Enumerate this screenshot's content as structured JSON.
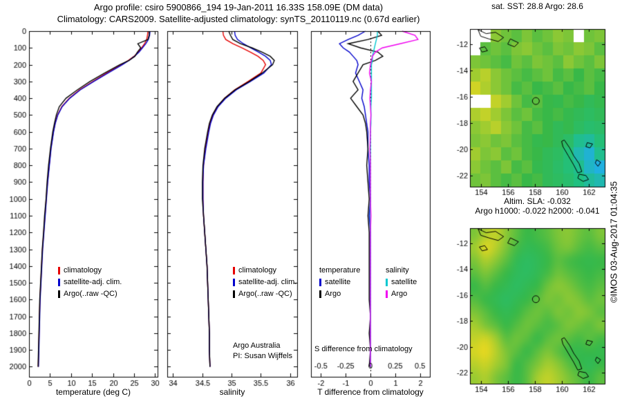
{
  "header": {
    "title_line1": "Argo profile: csiro 5900866_194 19-Jan-2011 16.33S 158.09E (DM data)",
    "title_line2": "Climatology: CARS2009. Satellite-adjusted climatology: synTS_20110119.nc (0.67d earlier)"
  },
  "watermark": "©IMOS 03-Aug-2017 01:04:35",
  "credit": {
    "line1": "Argo Australia",
    "line2": "PI: Susan Wijffels"
  },
  "colors": {
    "climatology": "#e60000",
    "satellite_clim": "#0000cc",
    "argo": "#000000",
    "sal_satellite": "#00c8d0",
    "sal_argo": "#f000f0",
    "axis": "#000000"
  },
  "chart_data": [
    {
      "type": "line",
      "name": "temperature-profile",
      "xlabel": "temperature (deg C)",
      "ylabel": "depth",
      "xlim": [
        0,
        30.6
      ],
      "ylim": [
        0,
        2060
      ],
      "x_ticks": [
        0,
        5,
        10,
        15,
        20,
        25,
        30
      ],
      "y_ticks": [
        0,
        100,
        200,
        300,
        400,
        500,
        600,
        700,
        800,
        900,
        1000,
        1100,
        1200,
        1300,
        1400,
        1500,
        1600,
        1700,
        1800,
        1900,
        2000
      ],
      "depths": [
        0,
        25,
        50,
        75,
        100,
        125,
        150,
        175,
        200,
        250,
        300,
        350,
        400,
        450,
        500,
        550,
        600,
        700,
        800,
        900,
        1000,
        1100,
        1200,
        1300,
        1400,
        1500,
        1600,
        1700,
        1800,
        1900,
        2000
      ],
      "series": [
        {
          "name": "climatology",
          "color_key": "climatology",
          "values": [
            28.3,
            28.2,
            28.0,
            27.5,
            26.8,
            26.0,
            25.0,
            23.6,
            22.0,
            18.5,
            15.2,
            12.0,
            9.6,
            7.8,
            6.8,
            6.2,
            5.8,
            5.2,
            4.8,
            4.4,
            4.1,
            3.8,
            3.5,
            3.2,
            3.0,
            2.8,
            2.6,
            2.5,
            2.4,
            2.3,
            2.2
          ]
        },
        {
          "name": "satellite-adj. clim.",
          "color_key": "satellite_clim",
          "values": [
            28.8,
            28.7,
            28.4,
            27.8,
            27.0,
            26.2,
            25.1,
            23.8,
            22.2,
            18.8,
            15.4,
            12.2,
            9.7,
            7.9,
            6.85,
            6.25,
            5.85,
            5.25,
            4.85,
            4.45,
            4.15,
            3.85,
            3.55,
            3.25,
            3.05,
            2.85,
            2.65,
            2.55,
            2.45,
            2.35,
            2.25
          ]
        },
        {
          "name": "Argo(..raw -QC)",
          "color_key": "argo",
          "values": [
            28.6,
            28.6,
            28.3,
            25.9,
            26.6,
            25.8,
            25.2,
            23.8,
            21.6,
            18.0,
            14.5,
            11.5,
            8.8,
            7.2,
            6.5,
            6.05,
            5.65,
            5.1,
            4.65,
            4.3,
            4.05,
            3.7,
            3.45,
            3.15,
            2.95,
            2.75,
            2.55,
            2.45,
            2.35,
            2.25,
            2.15
          ]
        }
      ]
    },
    {
      "type": "line",
      "name": "salinity-profile",
      "xlabel": "salinity",
      "ylabel": "depth",
      "xlim": [
        33.9,
        36.12
      ],
      "ylim": [
        0,
        2060
      ],
      "x_ticks": [
        34,
        34.5,
        35,
        35.5,
        36
      ],
      "y_ticks": [
        0,
        100,
        200,
        300,
        400,
        500,
        600,
        700,
        800,
        900,
        1000,
        1100,
        1200,
        1300,
        1400,
        1500,
        1600,
        1700,
        1800,
        1900,
        2000
      ],
      "depths": [
        0,
        25,
        50,
        75,
        100,
        125,
        150,
        175,
        200,
        250,
        300,
        350,
        400,
        450,
        500,
        550,
        600,
        700,
        800,
        900,
        1000,
        1100,
        1200,
        1300,
        1400,
        1500,
        1600,
        1700,
        1800,
        1900,
        2000
      ],
      "series": [
        {
          "name": "climatology",
          "color_key": "climatology",
          "values": [
            34.85,
            34.86,
            34.9,
            35.02,
            35.18,
            35.32,
            35.45,
            35.54,
            35.58,
            35.5,
            35.28,
            35.05,
            34.88,
            34.76,
            34.68,
            34.63,
            34.6,
            34.55,
            34.52,
            34.51,
            34.51,
            34.52,
            34.54,
            34.56,
            34.58,
            34.59,
            34.6,
            34.61,
            34.62,
            34.62,
            34.63
          ]
        },
        {
          "name": "satellite-adj. clim.",
          "color_key": "satellite_clim",
          "values": [
            35.05,
            35.06,
            35.1,
            35.2,
            35.33,
            35.46,
            35.58,
            35.66,
            35.68,
            35.55,
            35.32,
            35.08,
            34.9,
            34.77,
            34.69,
            34.64,
            34.61,
            34.56,
            34.52,
            34.51,
            34.51,
            34.52,
            34.54,
            34.56,
            34.58,
            34.59,
            34.6,
            34.61,
            34.62,
            34.62,
            34.63
          ]
        },
        {
          "name": "Argo(..raw -QC)",
          "color_key": "argo",
          "values": [
            34.95,
            34.98,
            35.02,
            35.15,
            35.35,
            35.52,
            35.66,
            35.73,
            35.7,
            35.52,
            35.3,
            35.06,
            34.88,
            34.75,
            34.67,
            34.62,
            34.59,
            34.54,
            34.51,
            34.5,
            34.5,
            34.52,
            34.54,
            34.56,
            34.58,
            34.59,
            34.6,
            34.61,
            34.62,
            34.62,
            34.63
          ]
        }
      ]
    },
    {
      "type": "line",
      "name": "difference-from-climatology",
      "xlabel": "T difference from climatology",
      "ylabel": "depth",
      "xlim": [
        -2.4,
        2.4
      ],
      "ylim": [
        0,
        2060
      ],
      "x_ticks": [
        -2,
        -1,
        0,
        1,
        2
      ],
      "zero_line": true,
      "s_axis": {
        "label": "S difference from climatology",
        "scale": 4,
        "ticks": [
          -0.5,
          -0.25,
          0,
          0.25,
          0.5
        ]
      },
      "legend": {
        "col1": "temperature",
        "col2": "salinity",
        "rows": [
          [
            "satellite",
            "satellite"
          ],
          [
            "Argo",
            "Argo"
          ]
        ]
      },
      "depths": [
        0,
        25,
        50,
        75,
        100,
        125,
        150,
        175,
        200,
        250,
        300,
        350,
        400,
        450,
        500,
        550,
        600,
        700,
        800,
        900,
        1000,
        1100,
        1200,
        1300,
        1400,
        1500,
        1600,
        1700,
        1800,
        1900,
        2000
      ],
      "series": [
        {
          "name": "temperature satellite",
          "axis": "T",
          "color_key": "satellite_clim",
          "values": [
            -0.2,
            -0.5,
            -0.9,
            -1.25,
            -1.1,
            -0.85,
            -0.7,
            -0.55,
            -0.5,
            -0.6,
            -0.45,
            -0.3,
            -0.35,
            -0.25,
            -0.2,
            -0.15,
            -0.1,
            -0.1,
            -0.05,
            -0.05,
            0,
            -0.05,
            0,
            0,
            0,
            0,
            0,
            0,
            0,
            0,
            0
          ]
        },
        {
          "name": "temperature Argo",
          "axis": "T",
          "color_key": "argo",
          "values": [
            0.3,
            0.45,
            -0.1,
            -0.9,
            -0.4,
            0.3,
            0.5,
            0.2,
            -0.3,
            -0.5,
            -0.7,
            -0.5,
            -0.8,
            -0.55,
            -0.3,
            -0.2,
            -0.15,
            -0.1,
            -0.15,
            -0.1,
            -0.05,
            -0.1,
            -0.05,
            -0.05,
            -0.05,
            -0.05,
            -0.05,
            0,
            -0.05,
            0,
            -0.05
          ]
        },
        {
          "name": "salinity satellite",
          "axis": "S",
          "color_key": "sal_satellite",
          "values": [
            0.07,
            0.07,
            0.06,
            0.05,
            0.04,
            0.03,
            0.02,
            0.02,
            0.01,
            0.01,
            0.01,
            0.01,
            0.01,
            0.005,
            0.005,
            0.005,
            0,
            0,
            0,
            0,
            0,
            0,
            0,
            0,
            0,
            0,
            0,
            0,
            0,
            0,
            0
          ]
        },
        {
          "name": "salinity Argo",
          "axis": "S",
          "color_key": "sal_argo",
          "values": [
            0.32,
            0.45,
            0.48,
            0.3,
            0.12,
            0.05,
            0.02,
            0.01,
            0,
            -0.01,
            0.01,
            0,
            -0.005,
            0,
            0.005,
            0,
            0,
            -0.005,
            0,
            0,
            0,
            0.005,
            0,
            0,
            0,
            0,
            0,
            0,
            0,
            0,
            0
          ]
        }
      ]
    },
    {
      "type": "heatmap",
      "name": "sst-map",
      "title": "sat. SST: 28.8 Argo: 28.6",
      "style": "blocky",
      "xlim": [
        153.2,
        163.2
      ],
      "ylim": [
        -10.85,
        -22.85
      ],
      "x_ticks": [
        154,
        156,
        158,
        160,
        162
      ],
      "y_ticks": [
        -12,
        -14,
        -16,
        -18,
        -20,
        -22
      ],
      "marker": {
        "lon": 158.09,
        "lat": -16.33
      },
      "grid": [
        [
          null,
          null,
          0.62,
          0.58,
          0.55,
          0.6,
          0.55,
          0.58,
          0.62,
          0.6,
          null,
          0.58,
          0.6
        ],
        [
          null,
          0.55,
          0.58,
          0.55,
          0.6,
          0.62,
          0.58,
          0.55,
          0.6,
          0.58,
          0.62,
          0.6,
          0.55
        ],
        [
          0.6,
          0.58,
          0.55,
          0.52,
          0.58,
          0.55,
          0.6,
          0.58,
          0.55,
          0.62,
          0.58,
          0.55,
          0.6
        ],
        [
          0.65,
          0.7,
          0.62,
          0.58,
          0.55,
          0.52,
          0.55,
          0.58,
          0.52,
          0.55,
          0.5,
          0.55,
          0.52
        ],
        [
          0.75,
          0.68,
          0.62,
          0.58,
          0.52,
          0.55,
          0.5,
          0.52,
          0.55,
          0.5,
          0.52,
          0.55,
          0.5
        ],
        [
          null,
          null,
          0.72,
          0.65,
          0.58,
          0.52,
          0.55,
          0.5,
          0.48,
          0.52,
          0.5,
          0.45,
          0.48
        ],
        [
          0.68,
          0.72,
          0.65,
          0.6,
          0.55,
          0.58,
          0.52,
          0.5,
          0.52,
          0.48,
          0.45,
          0.42,
          0.45
        ],
        [
          0.62,
          0.65,
          0.7,
          0.62,
          0.58,
          0.52,
          0.55,
          0.5,
          0.45,
          0.48,
          0.42,
          0.38,
          0.4
        ],
        [
          0.6,
          0.62,
          0.58,
          0.6,
          0.55,
          0.52,
          0.48,
          0.5,
          0.45,
          0.4,
          0.3,
          0.28,
          0.35
        ],
        [
          0.65,
          0.6,
          0.62,
          0.55,
          0.58,
          0.52,
          0.5,
          0.45,
          0.42,
          0.35,
          0.25,
          0.2,
          0.3
        ],
        [
          0.62,
          0.58,
          0.55,
          0.6,
          0.52,
          0.55,
          0.48,
          0.45,
          0.4,
          0.35,
          0.3,
          0.22,
          0.18
        ],
        [
          0.58,
          0.6,
          0.55,
          0.52,
          0.55,
          0.5,
          0.52,
          0.45,
          0.42,
          0.38,
          0.32,
          0.28,
          0.25
        ]
      ]
    },
    {
      "type": "heatmap",
      "name": "sla-map",
      "title_line1": "Altim. SLA: -0.032",
      "title_line2": "Argo h1000: -0.022 h2000: -0.041",
      "style": "smooth",
      "xlim": [
        153.2,
        163.2
      ],
      "ylim": [
        -10.85,
        -22.85
      ],
      "x_ticks": [
        154,
        156,
        158,
        160,
        162
      ],
      "y_ticks": [
        -12,
        -14,
        -16,
        -18,
        -20,
        -22
      ],
      "marker": {
        "lon": 158.09,
        "lat": -16.33
      },
      "grid": [
        [
          0.6,
          0.68,
          0.72,
          0.62,
          0.55,
          0.5,
          0.52,
          0.55,
          0.6,
          0.62,
          0.58,
          0.55,
          0.6
        ],
        [
          0.65,
          0.78,
          0.7,
          0.6,
          0.52,
          0.46,
          0.48,
          0.52,
          0.58,
          0.6,
          0.55,
          0.52,
          0.55
        ],
        [
          0.6,
          0.68,
          0.62,
          0.55,
          0.46,
          0.42,
          0.45,
          0.5,
          0.55,
          0.52,
          0.5,
          0.48,
          0.5
        ],
        [
          0.55,
          0.6,
          0.55,
          0.5,
          0.44,
          0.42,
          0.46,
          0.52,
          0.58,
          0.55,
          0.52,
          0.5,
          0.52
        ],
        [
          0.5,
          0.54,
          0.5,
          0.46,
          0.42,
          0.46,
          0.5,
          0.58,
          0.62,
          0.6,
          0.55,
          0.52,
          0.55
        ],
        [
          0.54,
          0.5,
          0.46,
          0.42,
          0.46,
          0.5,
          0.55,
          0.6,
          0.58,
          0.62,
          0.6,
          0.55,
          0.58
        ],
        [
          0.6,
          0.55,
          0.5,
          0.46,
          0.5,
          0.55,
          0.58,
          0.55,
          0.6,
          0.58,
          0.62,
          0.6,
          0.55
        ],
        [
          0.66,
          0.6,
          0.55,
          0.5,
          0.54,
          0.58,
          0.55,
          0.52,
          0.55,
          0.6,
          0.58,
          0.55,
          0.6
        ],
        [
          0.72,
          0.75,
          0.65,
          0.55,
          0.58,
          0.55,
          0.5,
          0.55,
          0.58,
          0.55,
          0.52,
          0.55,
          0.52
        ],
        [
          0.76,
          0.8,
          0.7,
          0.6,
          0.55,
          0.5,
          0.55,
          0.6,
          0.55,
          0.5,
          0.48,
          0.5,
          0.48
        ],
        [
          0.7,
          0.74,
          0.66,
          0.6,
          0.5,
          0.54,
          0.6,
          0.66,
          0.62,
          0.55,
          0.5,
          0.45,
          0.5
        ],
        [
          0.64,
          0.68,
          0.6,
          0.55,
          0.5,
          0.55,
          0.66,
          0.72,
          0.66,
          0.6,
          0.55,
          0.5,
          0.55
        ]
      ]
    }
  ],
  "coastlines": [
    [
      [
        153.8,
        -10.9
      ],
      [
        154.4,
        -11.2
      ],
      [
        155.1,
        -11.1
      ],
      [
        155.7,
        -11.5
      ],
      [
        155.3,
        -11.8
      ],
      [
        154.6,
        -11.6
      ],
      [
        154.0,
        -11.4
      ],
      [
        153.8,
        -10.9
      ]
    ],
    [
      [
        156.2,
        -11.6
      ],
      [
        156.8,
        -11.9
      ],
      [
        156.5,
        -12.2
      ],
      [
        156.0,
        -12.0
      ],
      [
        156.2,
        -11.6
      ]
    ],
    [
      [
        153.9,
        -12.3
      ],
      [
        154.3,
        -12.2
      ],
      [
        154.5,
        -12.5
      ],
      [
        154.1,
        -12.6
      ],
      [
        153.9,
        -12.3
      ]
    ],
    [
      [
        160.2,
        -19.3
      ],
      [
        160.6,
        -19.9
      ],
      [
        160.9,
        -20.5
      ],
      [
        161.3,
        -21.1
      ],
      [
        161.5,
        -21.7
      ],
      [
        161.2,
        -21.8
      ],
      [
        160.9,
        -21.2
      ],
      [
        160.5,
        -20.5
      ],
      [
        160.1,
        -19.8
      ],
      [
        160.0,
        -19.4
      ],
      [
        160.2,
        -19.3
      ]
    ],
    [
      [
        161.9,
        -19.5
      ],
      [
        162.3,
        -19.6
      ],
      [
        162.1,
        -19.9
      ],
      [
        161.8,
        -19.8
      ],
      [
        161.9,
        -19.5
      ]
    ],
    [
      [
        161.3,
        -21.9
      ],
      [
        161.8,
        -22.0
      ],
      [
        162.0,
        -22.3
      ],
      [
        161.6,
        -22.45
      ],
      [
        161.2,
        -22.2
      ],
      [
        161.3,
        -21.9
      ]
    ],
    [
      [
        162.6,
        -20.8
      ],
      [
        162.9,
        -21.0
      ],
      [
        162.7,
        -21.3
      ],
      [
        162.5,
        -21.05
      ],
      [
        162.6,
        -20.8
      ]
    ]
  ]
}
